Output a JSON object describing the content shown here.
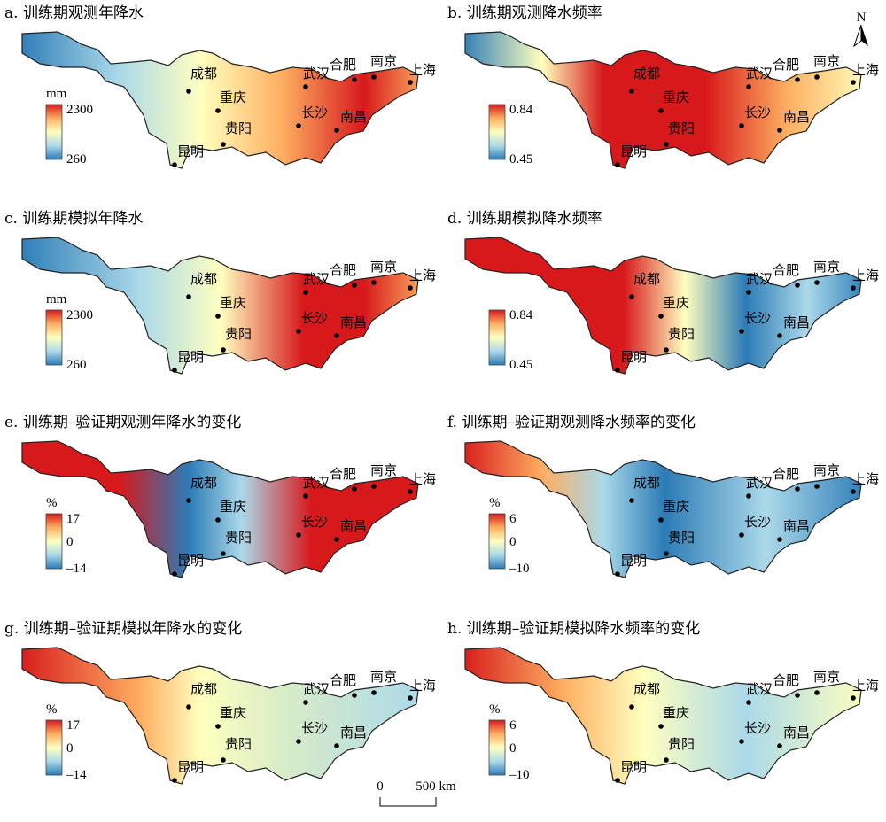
{
  "north_label": "N",
  "scale_bar": {
    "start": "0",
    "end": "500 km"
  },
  "cities": [
    "成都",
    "重庆",
    "贵阳",
    "昆明",
    "武汉",
    "长沙",
    "南昌",
    "合肥",
    "南京",
    "上海"
  ],
  "colors": {
    "high": "#d7191c",
    "mid_high": "#fdae61",
    "mid": "#ffffbf",
    "mid_low": "#abd9e9",
    "low": "#2c7bb6"
  },
  "panels": [
    {
      "title": "a. 训练期观测年降水",
      "unit": "mm",
      "max": "2300",
      "mid": "",
      "min": "260",
      "pattern": "a"
    },
    {
      "title": "b. 训练期观测降水频率",
      "unit": "",
      "max": "0.84",
      "mid": "",
      "min": "0.45",
      "pattern": "b"
    },
    {
      "title": "c. 训练期模拟年降水",
      "unit": "mm",
      "max": "2300",
      "mid": "",
      "min": "260",
      "pattern": "c"
    },
    {
      "title": "d. 训练期模拟降水频率",
      "unit": "",
      "max": "0.84",
      "mid": "",
      "min": "0.45",
      "pattern": "d"
    },
    {
      "title": "e. 训练期–验证期观测年降水的变化",
      "unit": "%",
      "max": "17",
      "mid": "0",
      "min": "–14",
      "pattern": "e"
    },
    {
      "title": "f. 训练期–验证期观测降水频率的变化",
      "unit": "%",
      "max": "6",
      "mid": "0",
      "min": "–10",
      "pattern": "f"
    },
    {
      "title": "g. 训练期–验证期模拟年降水的变化",
      "unit": "%",
      "max": "17",
      "mid": "0",
      "min": "–14",
      "pattern": "g"
    },
    {
      "title": "h. 训练期–验证期模拟降水频率的变化",
      "unit": "%",
      "max": "6",
      "mid": "0",
      "min": "–10",
      "pattern": "h"
    }
  ]
}
